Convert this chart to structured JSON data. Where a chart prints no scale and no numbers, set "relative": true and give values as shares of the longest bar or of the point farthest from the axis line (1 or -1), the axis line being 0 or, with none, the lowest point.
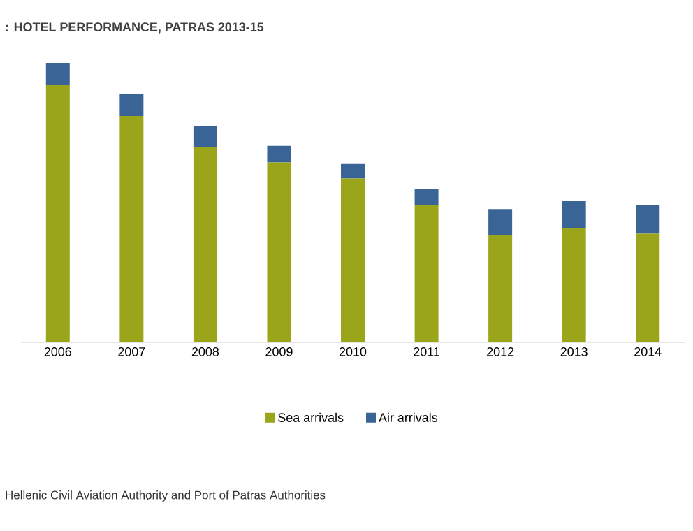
{
  "chart_data": {
    "type": "bar",
    "title": ": HOTEL PERFORMANCE, PATRAS 2013-15",
    "relative": true,
    "stacked": true,
    "legend": "bottom",
    "categories": [
      "2006",
      "2007",
      "2008",
      "2009",
      "2010",
      "2011",
      "2012",
      "2013",
      "2014"
    ],
    "series": [
      {
        "name": "Sea arrivals",
        "color": "#9aa51a",
        "values": [
          0.92,
          0.81,
          0.7,
          0.644,
          0.586,
          0.49,
          0.383,
          0.41,
          0.389
        ]
      },
      {
        "name": "Air arrivals",
        "color": "#3a6496",
        "values": [
          0.08,
          0.08,
          0.075,
          0.059,
          0.052,
          0.059,
          0.094,
          0.096,
          0.103
        ]
      }
    ],
    "annotations": [
      "Hellenic Civil Aviation Authority and Port of Patras Authorities"
    ]
  }
}
